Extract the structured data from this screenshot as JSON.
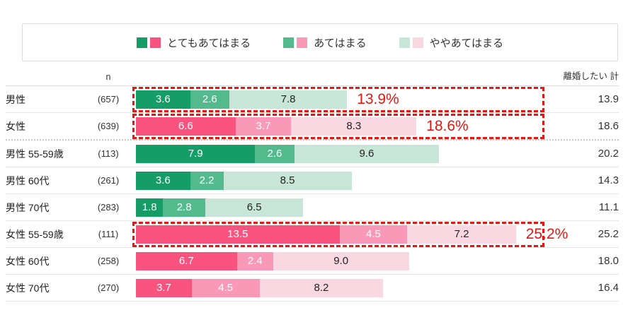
{
  "legend": {
    "items": [
      {
        "label": "とてもあてはまる"
      },
      {
        "label": "あてはまる"
      },
      {
        "label": "ややあてはまる"
      }
    ]
  },
  "header": {
    "n_label": "n",
    "total_label": "離婚したい 計"
  },
  "colors": {
    "green_shades": [
      "#169C66",
      "#52BA8C",
      "#C8E6D8"
    ],
    "pink_shades": [
      "#F95480",
      "#F999B7",
      "#FAD8E2"
    ],
    "highlight_red": "#E8160F",
    "segment_light_text": "#222222"
  },
  "chart_data": {
    "type": "bar",
    "orientation": "horizontal",
    "stacked": true,
    "unit": "%",
    "title": "",
    "series_labels": [
      "とてもあてはまる",
      "あてはまる",
      "ややあてはまる"
    ],
    "x_max_percent": 26.8,
    "rows": [
      {
        "label": "男性",
        "n": "(657)",
        "values": [
          3.6,
          2.6,
          7.8
        ],
        "total": "13.9",
        "palette": "green",
        "highlighted": true,
        "callout": "13.9%"
      },
      {
        "label": "女性",
        "n": "(639)",
        "values": [
          6.6,
          3.7,
          8.3
        ],
        "total": "18.6",
        "palette": "pink",
        "highlighted": true,
        "callout": "18.6%"
      },
      {
        "label": "男性  55-59歳",
        "n": "(113)",
        "values": [
          7.9,
          2.6,
          9.6
        ],
        "total": "20.2",
        "palette": "green",
        "highlighted": false,
        "callout": ""
      },
      {
        "label": "男性  60代",
        "n": "(261)",
        "values": [
          3.6,
          2.2,
          8.5
        ],
        "total": "14.3",
        "palette": "green",
        "highlighted": false,
        "callout": ""
      },
      {
        "label": "男性  70代",
        "n": "(283)",
        "values": [
          1.8,
          2.8,
          6.5
        ],
        "total": "11.1",
        "palette": "green",
        "highlighted": false,
        "callout": ""
      },
      {
        "label": "女性  55-59歳",
        "n": "(111)",
        "values": [
          13.5,
          4.5,
          7.2
        ],
        "total": "25.2",
        "palette": "pink",
        "highlighted": true,
        "callout": "25.2%"
      },
      {
        "label": "女性  60代",
        "n": "(258)",
        "values": [
          6.7,
          2.4,
          9.0
        ],
        "total": "18.0",
        "palette": "pink",
        "highlighted": false,
        "callout": ""
      },
      {
        "label": "女性  70代",
        "n": "(270)",
        "values": [
          3.7,
          4.5,
          8.2
        ],
        "total": "16.4",
        "palette": "pink",
        "highlighted": false,
        "callout": ""
      }
    ]
  }
}
